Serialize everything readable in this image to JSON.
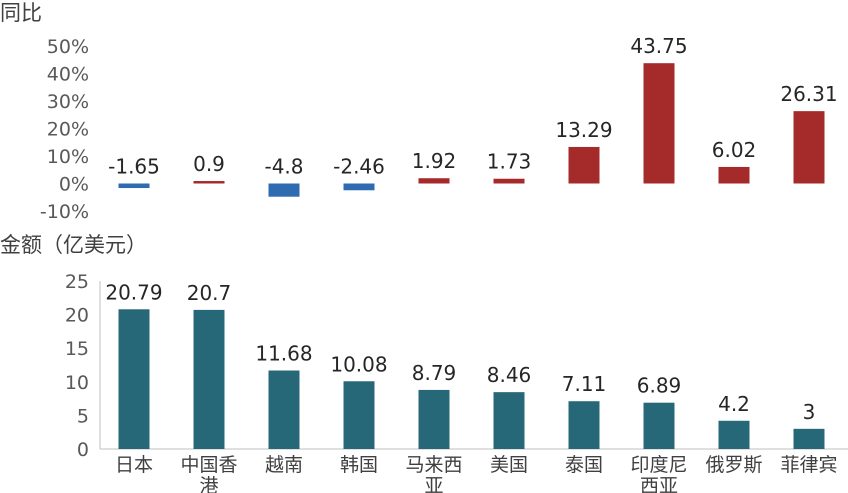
{
  "chart_data": [
    {
      "type": "bar",
      "ylabel": "同比",
      "categories": [
        "日本",
        "中国香港",
        "越南",
        "韩国",
        "马来西亚",
        "美国",
        "泰国",
        "印度尼西亚",
        "俄罗斯",
        "菲律宾"
      ],
      "values": [
        -1.65,
        0.9,
        -4.8,
        -2.46,
        1.92,
        1.73,
        13.29,
        43.75,
        6.02,
        26.31
      ],
      "value_labels": [
        "-1.65",
        "0.9",
        "-4.8",
        "-2.46",
        "1.92",
        "1.73",
        "13.29",
        "43.75",
        "6.02",
        "26.31"
      ],
      "yticks": [
        "50%",
        "40%",
        "30%",
        "20%",
        "10%",
        "0%",
        "-10%"
      ],
      "ylim": [
        -10,
        50
      ],
      "colors": {
        "negative": "#2e6bb0",
        "positive": "#a52a2a"
      }
    },
    {
      "type": "bar",
      "ylabel": "金额（亿美元）",
      "categories": [
        "日本",
        "中国香港",
        "越南",
        "韩国",
        "马来西亚",
        "美国",
        "泰国",
        "印度尼西亚",
        "俄罗斯",
        "菲律宾"
      ],
      "category_lines": [
        [
          "日本"
        ],
        [
          "中国香",
          "港"
        ],
        [
          "越南"
        ],
        [
          "韩国"
        ],
        [
          "马来西",
          "亚"
        ],
        [
          "美国"
        ],
        [
          "泰国"
        ],
        [
          "印度尼",
          "西亚"
        ],
        [
          "俄罗斯"
        ],
        [
          "菲律宾"
        ]
      ],
      "values": [
        20.79,
        20.7,
        11.68,
        10.08,
        8.79,
        8.46,
        7.11,
        6.89,
        4.2,
        3
      ],
      "value_labels": [
        "20.79",
        "20.7",
        "11.68",
        "10.08",
        "8.79",
        "8.46",
        "7.11",
        "6.89",
        "4.2",
        "3"
      ],
      "yticks": [
        "25",
        "20",
        "15",
        "10",
        "5",
        "0"
      ],
      "ylim": [
        0,
        25
      ],
      "colors": {
        "bar": "#276878"
      }
    }
  ]
}
